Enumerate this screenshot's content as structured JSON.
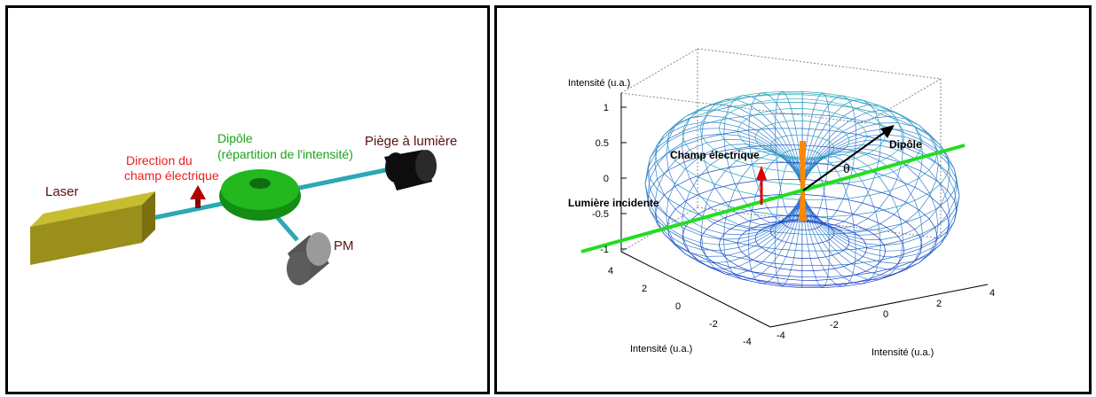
{
  "left_diagram": {
    "labels": {
      "laser": "Laser",
      "direction_line1": "Direction du",
      "direction_line2": "champ électrique",
      "dipole_line1": "Dipôle",
      "dipole_line2": "(répartition de l'intensité)",
      "trap": "Piège à lumière",
      "pm": "PM"
    },
    "colors": {
      "laser_body": "#9a8f1a",
      "dipole": "#22a81e",
      "beam": "#2aa9b5",
      "arrow": "#b00000",
      "direction_text": "#ee1c1c",
      "dipole_text": "#1aa51a",
      "dark_text": "#5a1010"
    }
  },
  "right_plot": {
    "labels": {
      "zlabel": "Intensité (u.a.)",
      "xlabel": "Intensité (u.a.)",
      "ylabel": "Intensité (u.a.)",
      "dipole": "Dipôle",
      "field": "Champ électrique",
      "incident": "Lumière incidente",
      "theta": "θ"
    },
    "z_ticks": [
      "1",
      "0.5",
      "0",
      "-0.5",
      "-1"
    ],
    "x_ticks": [
      "4",
      "2",
      "0",
      "-2",
      "-4"
    ],
    "y_ticks": [
      "4",
      "2",
      "0",
      "-2",
      "-4"
    ],
    "colors": {
      "incident_line": "#22dd22",
      "field_arrow": "#dd0000",
      "dipole_core": "#ff8800",
      "mesh_top": "#22ccaa",
      "mesh_bottom": "#1a1acc"
    }
  }
}
